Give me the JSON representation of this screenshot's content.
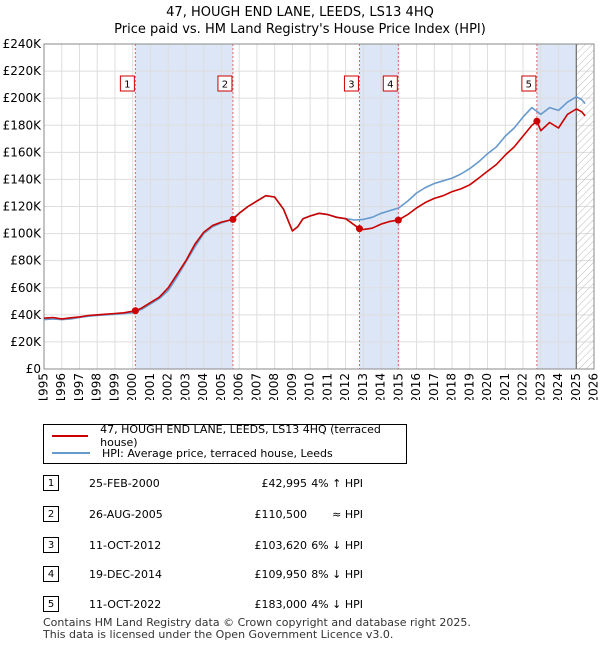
{
  "title": {
    "line1": "47, HOUGH END LANE, LEEDS, LS13 4HQ",
    "line2": "Price paid vs. HM Land Registry's House Price Index (HPI)"
  },
  "chart_data": {
    "type": "line",
    "ylim": [
      0,
      240000
    ],
    "xlim": [
      1995,
      2026
    ],
    "y_ticks": [
      0,
      20000,
      40000,
      60000,
      80000,
      100000,
      120000,
      140000,
      160000,
      180000,
      200000,
      220000,
      240000
    ],
    "y_tick_labels": [
      "£0",
      "£20K",
      "£40K",
      "£60K",
      "£80K",
      "£100K",
      "£120K",
      "£140K",
      "£160K",
      "£180K",
      "£200K",
      "£220K",
      "£240K"
    ],
    "x_ticks": [
      1995,
      1996,
      1997,
      1998,
      1999,
      2000,
      2001,
      2002,
      2003,
      2004,
      2005,
      2006,
      2007,
      2008,
      2009,
      2010,
      2011,
      2012,
      2013,
      2014,
      2015,
      2016,
      2017,
      2018,
      2019,
      2020,
      2021,
      2022,
      2023,
      2024,
      2025,
      2026
    ],
    "x_tick_labels": [
      "1995",
      "1996",
      "1997",
      "1998",
      "1999",
      "2000",
      "2001",
      "2002",
      "2003",
      "2004",
      "2005",
      "2006",
      "2007",
      "2008",
      "2009",
      "2010",
      "2011",
      "2012",
      "2013",
      "2014",
      "2015",
      "2016",
      "2017",
      "2018",
      "2019",
      "2020",
      "2021",
      "2022",
      "2023",
      "2024",
      "2025",
      "2026"
    ],
    "future_from": 2025.0,
    "shaded_spans": [
      [
        2000.15,
        2005.65
      ],
      [
        2012.78,
        2014.97
      ],
      [
        2022.78,
        2025.0
      ]
    ],
    "series": [
      {
        "name": "47, HOUGH END LANE, LEEDS, LS13 4HQ (terraced house)",
        "color": "#cc0000",
        "x": [
          1995.0,
          1995.5,
          1996.0,
          1996.5,
          1997.0,
          1997.5,
          1998.0,
          1998.5,
          1999.0,
          1999.5,
          2000.15,
          2000.5,
          2001.0,
          2001.5,
          2002.0,
          2002.5,
          2003.0,
          2003.5,
          2004.0,
          2004.5,
          2005.0,
          2005.65,
          2006.0,
          2006.5,
          2007.0,
          2007.5,
          2008.0,
          2008.5,
          2009.0,
          2009.3,
          2009.6,
          2010.0,
          2010.5,
          2011.0,
          2011.5,
          2012.0,
          2012.78,
          2013.0,
          2013.5,
          2014.0,
          2014.5,
          2014.97,
          2015.5,
          2016.0,
          2016.5,
          2017.0,
          2017.5,
          2018.0,
          2018.5,
          2019.0,
          2019.5,
          2020.0,
          2020.5,
          2021.0,
          2021.5,
          2022.0,
          2022.5,
          2022.78,
          2023.0,
          2023.5,
          2024.0,
          2024.5,
          2025.0,
          2025.3,
          2025.5
        ],
        "y": [
          37500,
          38000,
          37000,
          37800,
          38500,
          39500,
          40000,
          40500,
          41000,
          41500,
          42995,
          45000,
          49000,
          53000,
          60000,
          70000,
          80000,
          92000,
          101000,
          106000,
          108500,
          110500,
          115000,
          120000,
          124000,
          128000,
          127000,
          118000,
          102000,
          105000,
          111000,
          113000,
          115000,
          114000,
          112000,
          111000,
          103620,
          103000,
          104000,
          107000,
          109000,
          109950,
          114000,
          119000,
          123000,
          126000,
          128000,
          131000,
          133000,
          136000,
          141000,
          146000,
          151000,
          158000,
          164000,
          172000,
          180000,
          183000,
          176000,
          182000,
          178000,
          188000,
          192000,
          190000,
          187000
        ]
      },
      {
        "name": "HPI: Average price, terraced house, Leeds",
        "color": "#6699cc",
        "x": [
          1995.0,
          1995.5,
          1996.0,
          1996.5,
          1997.0,
          1997.5,
          1998.0,
          1998.5,
          1999.0,
          1999.5,
          2000.0,
          2000.5,
          2001.0,
          2001.5,
          2002.0,
          2002.5,
          2003.0,
          2003.5,
          2004.0,
          2004.5,
          2005.0,
          2005.5,
          2006.0,
          2006.5,
          2007.0,
          2007.5,
          2008.0,
          2008.5,
          2009.0,
          2009.3,
          2009.6,
          2010.0,
          2010.5,
          2011.0,
          2011.5,
          2012.0,
          2012.5,
          2013.0,
          2013.5,
          2014.0,
          2014.5,
          2015.0,
          2015.5,
          2016.0,
          2016.5,
          2017.0,
          2017.5,
          2018.0,
          2018.5,
          2019.0,
          2019.5,
          2020.0,
          2020.5,
          2021.0,
          2021.5,
          2022.0,
          2022.5,
          2023.0,
          2023.5,
          2024.0,
          2024.5,
          2025.0,
          2025.3,
          2025.5
        ],
        "y": [
          36500,
          37000,
          36500,
          37000,
          38000,
          39000,
          39500,
          40000,
          40500,
          41000,
          41500,
          44000,
          48000,
          52000,
          58000,
          68000,
          79000,
          90000,
          100000,
          105000,
          108000,
          110000,
          115000,
          120000,
          124000,
          128000,
          127000,
          118000,
          102000,
          105000,
          111000,
          113000,
          115000,
          114000,
          112000,
          111000,
          110000,
          110500,
          112000,
          115000,
          117000,
          119000,
          124000,
          130000,
          134000,
          137000,
          139000,
          141000,
          144000,
          148000,
          153000,
          159000,
          164000,
          172000,
          178000,
          186000,
          193000,
          188000,
          193000,
          191000,
          197000,
          201000,
          199000,
          196000
        ]
      }
    ],
    "sales": [
      {
        "num": "1",
        "x": 2000.15,
        "price": 42995
      },
      {
        "num": "2",
        "x": 2005.65,
        "price": 110500
      },
      {
        "num": "3",
        "x": 2012.78,
        "price": 103620
      },
      {
        "num": "4",
        "x": 2014.97,
        "price": 109950
      },
      {
        "num": "5",
        "x": 2022.78,
        "price": 183000
      }
    ],
    "marker_color": "#cc0000",
    "span_color": "#dde6f7",
    "vline_color": "#dd6666"
  },
  "legend": {
    "red": {
      "label": "47, HOUGH END LANE, LEEDS, LS13 4HQ (terraced house)",
      "color": "#cc0000"
    },
    "blue": {
      "label": "HPI: Average price, terraced house, Leeds",
      "color": "#6699cc"
    }
  },
  "transactions": [
    {
      "num": "1",
      "date": "25-FEB-2000",
      "price": "£42,995",
      "hpi": "4% ↑ HPI"
    },
    {
      "num": "2",
      "date": "26-AUG-2005",
      "price": "£110,500",
      "hpi": "≈ HPI"
    },
    {
      "num": "3",
      "date": "11-OCT-2012",
      "price": "£103,620",
      "hpi": "6% ↓ HPI"
    },
    {
      "num": "4",
      "date": "19-DEC-2014",
      "price": "£109,950",
      "hpi": "8% ↓ HPI"
    },
    {
      "num": "5",
      "date": "11-OCT-2022",
      "price": "£183,000",
      "hpi": "4% ↓ HPI"
    }
  ],
  "footer": {
    "line1": "Contains HM Land Registry data © Crown copyright and database right 2025.",
    "line2": "This data is licensed under the Open Government Licence v3.0."
  }
}
